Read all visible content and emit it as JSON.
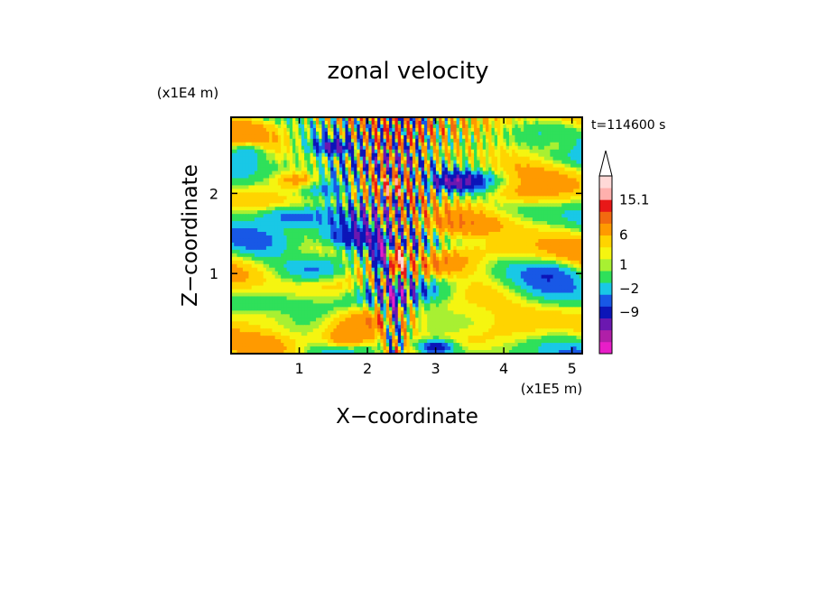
{
  "chart_data": {
    "type": "heatmap",
    "title": "zonal velocity",
    "xlabel": "X−coordinate",
    "ylabel": "Z−coordinate",
    "x_unit": "(x1E5 m)",
    "y_unit": "(x1E4 m)",
    "time_label": "t=114600 s",
    "xlim": [
      0,
      5.15
    ],
    "ylim": [
      0,
      2.95
    ],
    "x_ticks": [
      "1",
      "2",
      "3",
      "4",
      "5"
    ],
    "x_tick_values": [
      1,
      2,
      3,
      4,
      5
    ],
    "y_ticks": [
      "1",
      "2"
    ],
    "y_tick_values": [
      1,
      2
    ],
    "colorbar": {
      "colors": [
        "#e81ec8",
        "#b01fa8",
        "#6b18b0",
        "#0c15b8",
        "#1858e6",
        "#19c8e6",
        "#2fe05a",
        "#a8f032",
        "#f5f510",
        "#ffd400",
        "#ff9a00",
        "#f26a10",
        "#e81818",
        "#ffb0ad",
        "#ffd9d7"
      ],
      "ticks": [
        "15.1",
        "6",
        "1",
        "−2",
        "−9"
      ],
      "tick_values": [
        15.1,
        6,
        1,
        -2,
        -9
      ],
      "tick_levels": [
        13,
        10,
        7.5,
        5.5,
        3.5
      ],
      "extend": "max"
    },
    "features": [
      {
        "cx": 1.0,
        "cz": 2.15,
        "rx": 0.35,
        "rz": 0.12,
        "v": 6
      },
      {
        "cx": 0.9,
        "cz": 1.72,
        "rx": 0.6,
        "rz": 0.15,
        "v": -5
      },
      {
        "cx": 1.9,
        "cz": 1.45,
        "rx": 0.55,
        "rz": 0.16,
        "v": -8
      },
      {
        "cx": 1.55,
        "cz": 2.57,
        "rx": 0.35,
        "rz": 0.1,
        "v": -8
      },
      {
        "cx": 1.45,
        "cz": 2.05,
        "rx": 0.55,
        "rz": 0.14,
        "v": -3
      },
      {
        "cx": 3.25,
        "cz": 2.15,
        "rx": 0.5,
        "rz": 0.12,
        "v": -9
      },
      {
        "cx": 3.5,
        "cz": 1.6,
        "rx": 0.75,
        "rz": 0.18,
        "v": 6
      },
      {
        "cx": 3.1,
        "cz": 2.5,
        "rx": 0.5,
        "rz": 0.15,
        "v": 4
      },
      {
        "cx": 4.3,
        "cz": 2.0,
        "rx": 0.55,
        "rz": 0.14,
        "v": 3
      },
      {
        "cx": 4.2,
        "cz": 1.3,
        "rx": 0.5,
        "rz": 0.12,
        "v": 2
      },
      {
        "cx": 2.45,
        "cz": 1.2,
        "rx": 0.1,
        "rz": 0.18,
        "v": 14
      },
      {
        "cx": 2.2,
        "cz": 1.2,
        "rx": 0.12,
        "rz": 0.22,
        "v": -9
      },
      {
        "cx": 2.4,
        "cz": 0.55,
        "rx": 0.08,
        "rz": 0.35,
        "v": -8
      },
      {
        "cx": 1.7,
        "cz": 0.18,
        "rx": 0.35,
        "rz": 0.12,
        "v": 5
      },
      {
        "cx": 0.6,
        "cz": 0.45,
        "rx": 0.8,
        "rz": 0.2,
        "v": 2
      },
      {
        "cx": 3.3,
        "cz": 0.5,
        "rx": 0.7,
        "rz": 0.25,
        "v": 1.5
      },
      {
        "cx": 3.0,
        "cz": 0.08,
        "rx": 0.3,
        "rz": 0.1,
        "v": -7
      },
      {
        "cx": 4.7,
        "cz": 1.0,
        "rx": 0.4,
        "rz": 0.15,
        "v": -3
      },
      {
        "cx": 1.2,
        "cz": 1.05,
        "rx": 0.5,
        "rz": 0.15,
        "v": -3
      },
      {
        "cx": 4.8,
        "cz": 2.6,
        "rx": 0.4,
        "rz": 0.15,
        "v": 2
      },
      {
        "cx": 0.25,
        "cz": 2.5,
        "rx": 0.25,
        "rz": 0.12,
        "v": -3
      }
    ]
  }
}
